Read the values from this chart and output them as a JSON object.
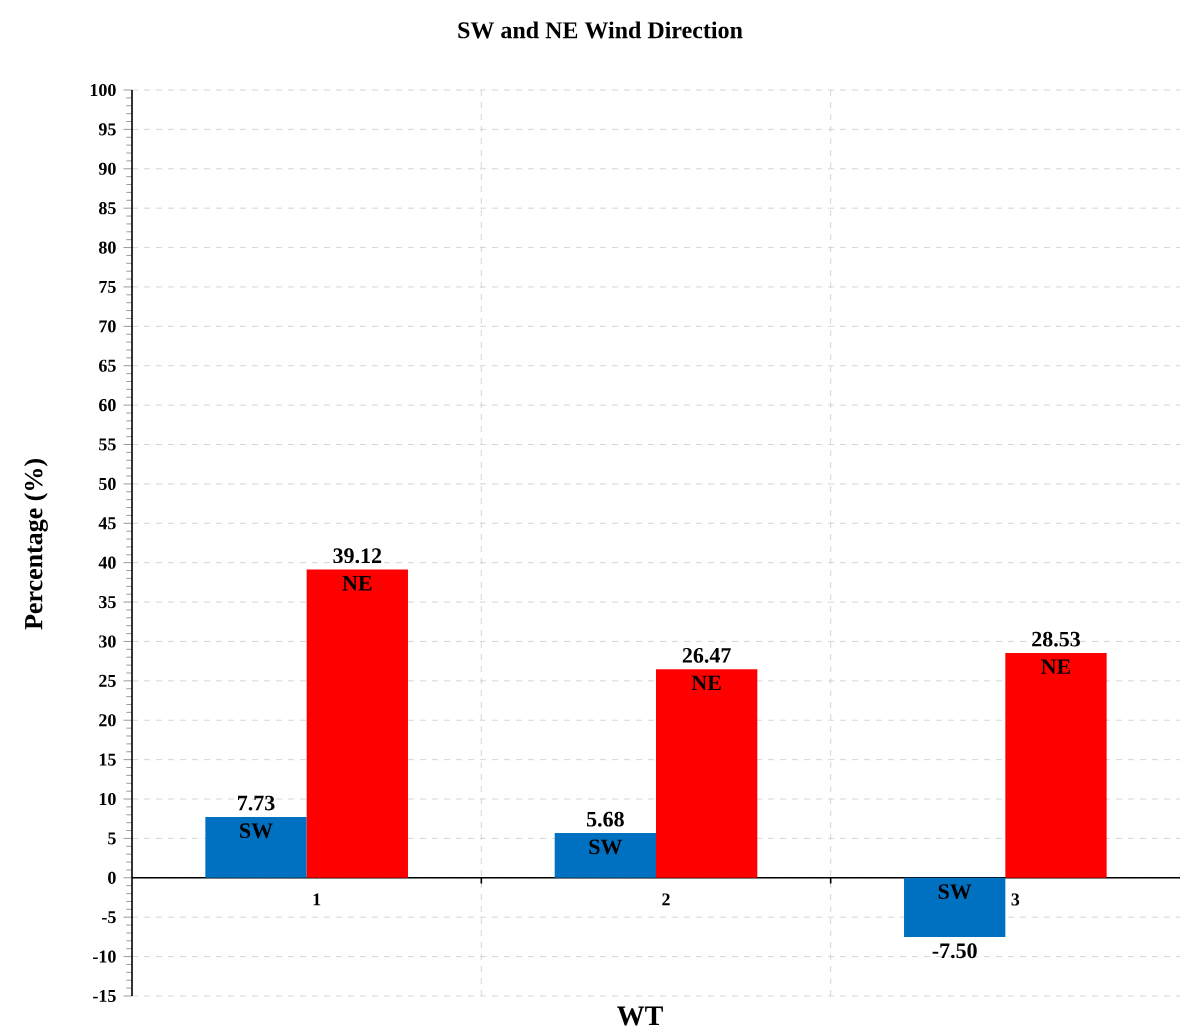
{
  "chart_data": {
    "type": "bar",
    "title": "SW and NE Wind Direction",
    "xlabel": "WT",
    "ylabel": "Percentage (%)",
    "categories": [
      "1",
      "2",
      "3"
    ],
    "series": [
      {
        "name": "SW",
        "color": "#0070c0",
        "values": [
          7.73,
          5.68,
          -7.5
        ],
        "value_labels": [
          "7.73",
          "5.68",
          "-7.50"
        ]
      },
      {
        "name": "NE",
        "color": "#ff0000",
        "values": [
          39.12,
          26.47,
          28.53
        ],
        "value_labels": [
          "39.12",
          "26.47",
          "28.53"
        ]
      }
    ],
    "ylim": [
      -15,
      100
    ],
    "yticks": [
      -15,
      -10,
      -5,
      0,
      5,
      10,
      15,
      20,
      25,
      30,
      35,
      40,
      45,
      50,
      55,
      60,
      65,
      70,
      75,
      80,
      85,
      90,
      95,
      100
    ],
    "grid": true
  }
}
